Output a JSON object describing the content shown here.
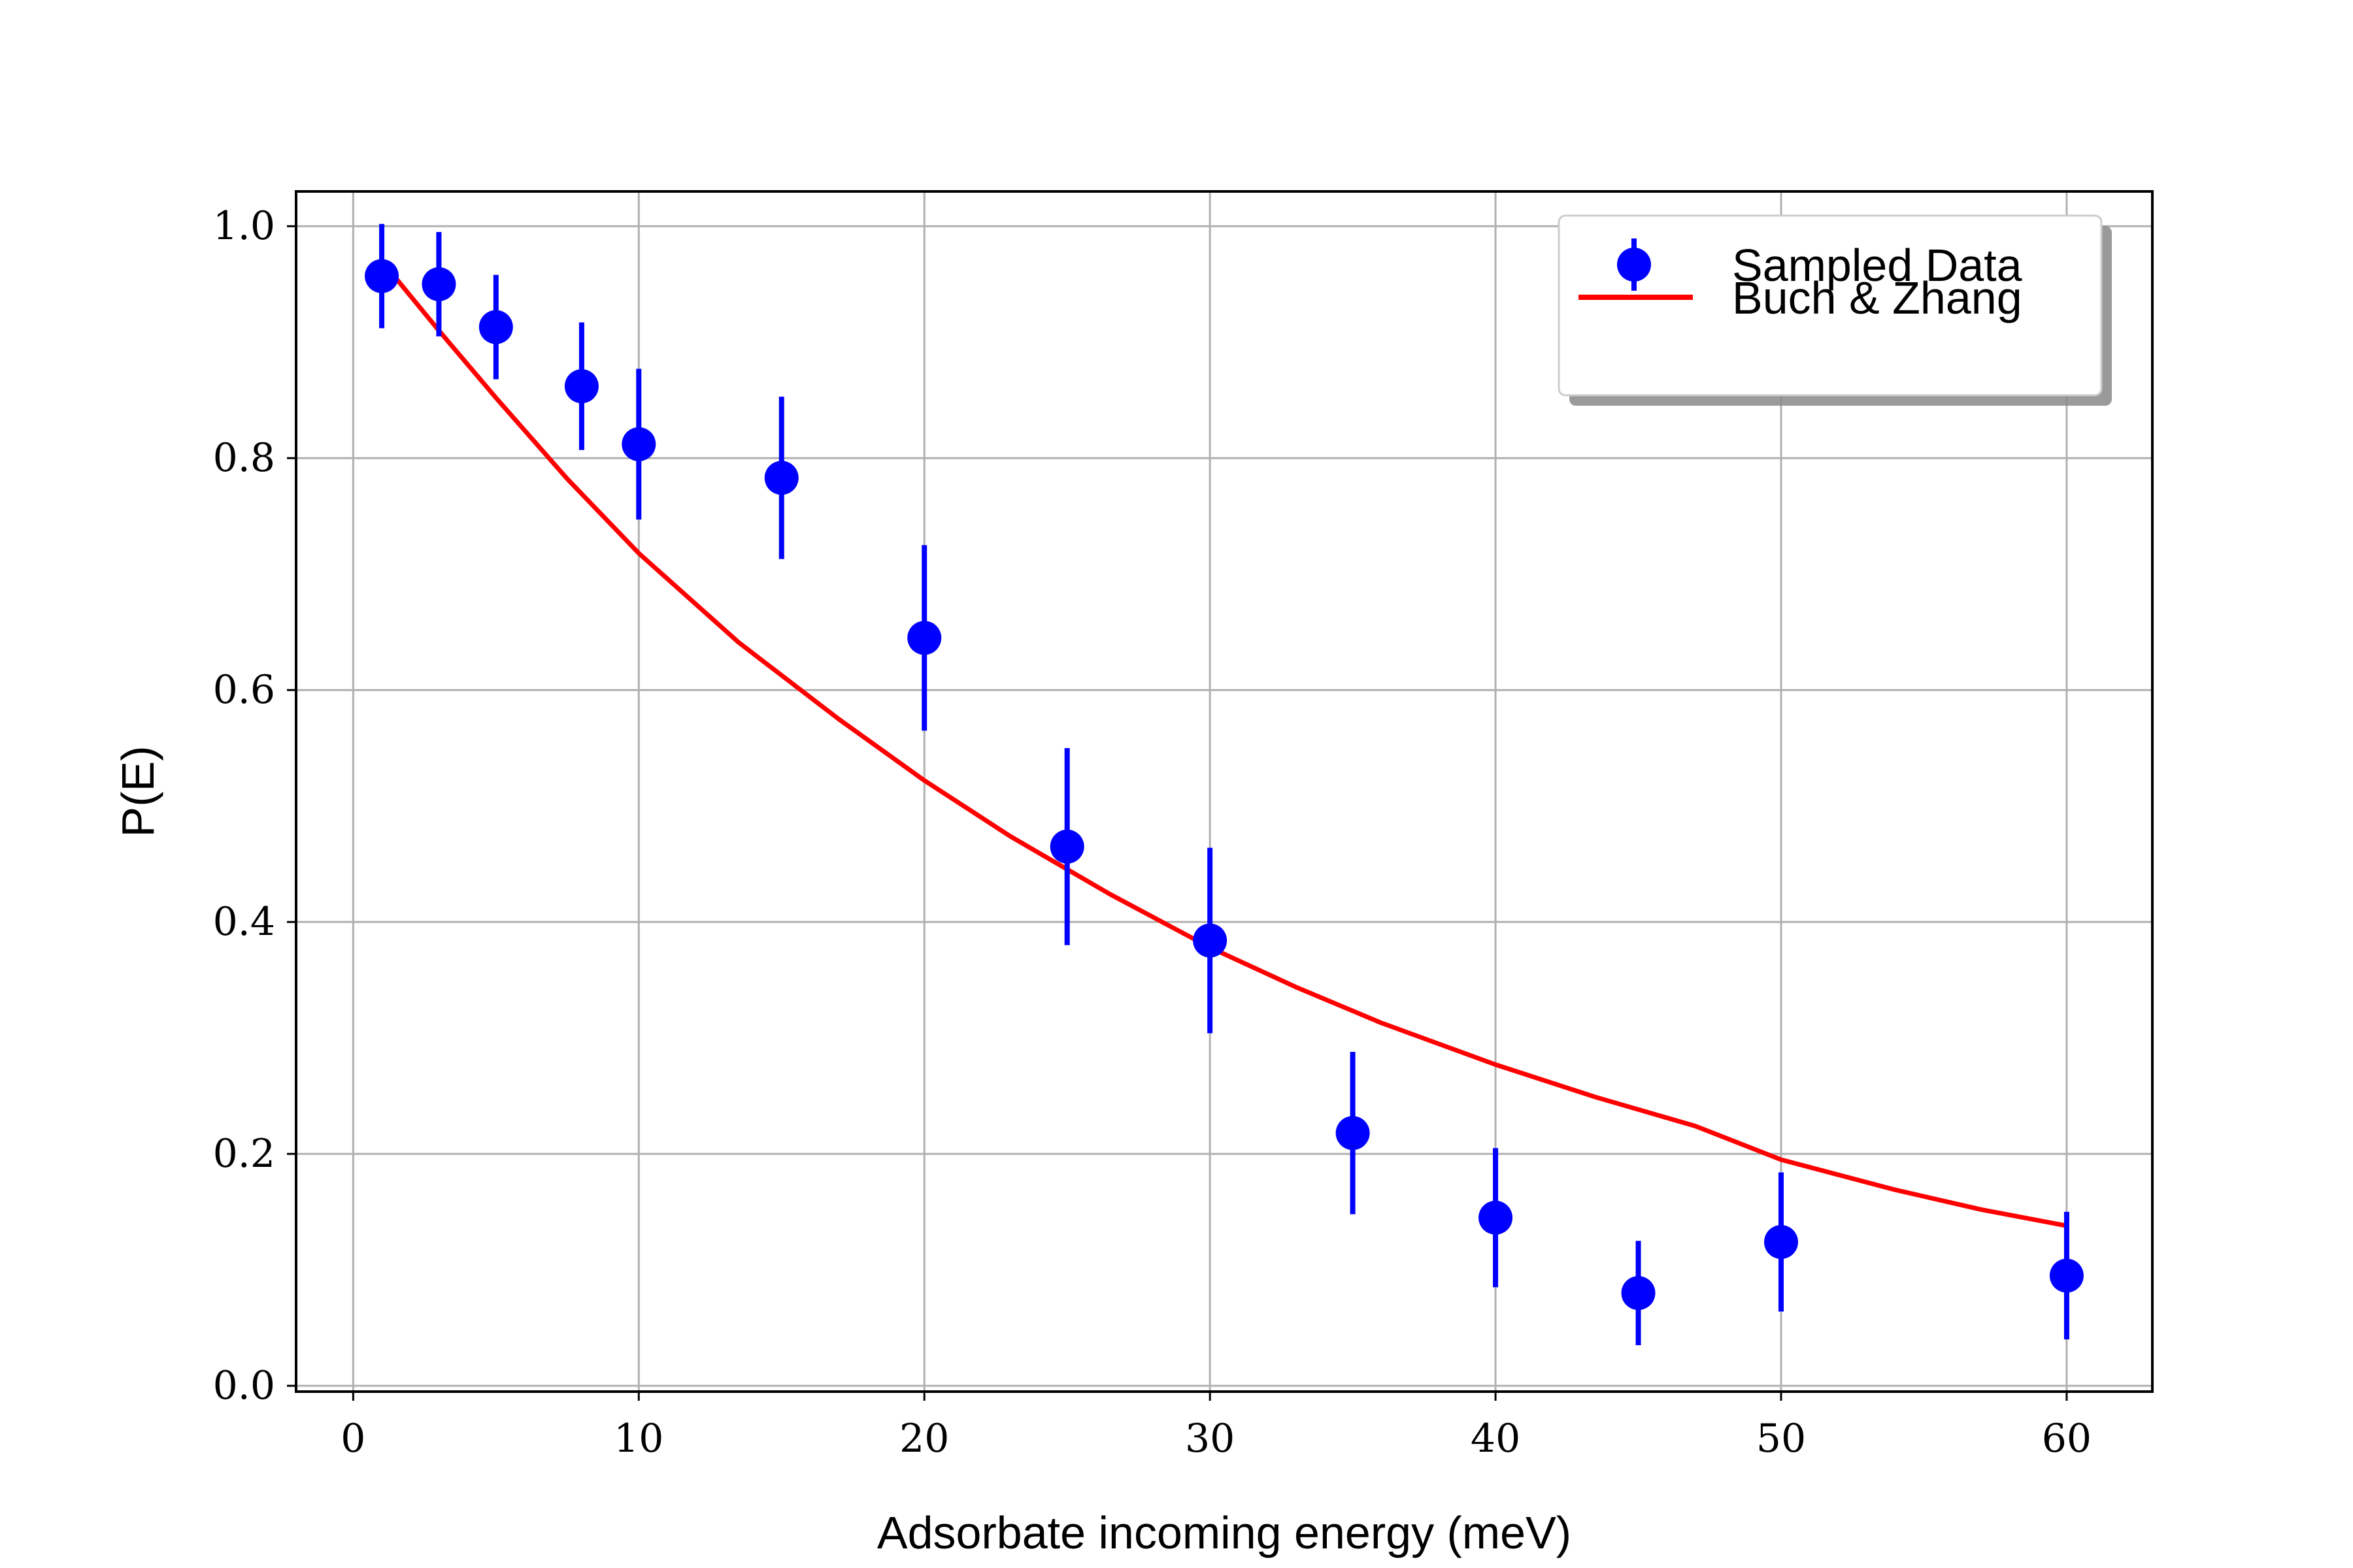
{
  "chart_data": {
    "type": "scatter",
    "title": "",
    "xlabel": "Adsorbate incoming energy (meV)",
    "ylabel": "P(E)",
    "xlim": [
      -2,
      63
    ],
    "ylim": [
      -0.005,
      1.03
    ],
    "xticks": [
      0,
      10,
      20,
      30,
      40,
      50,
      60
    ],
    "xtick_labels": [
      "0",
      "10",
      "20",
      "30",
      "40",
      "50",
      "60"
    ],
    "yticks": [
      0.0,
      0.2,
      0.4,
      0.6,
      0.8,
      1.0
    ],
    "ytick_labels": [
      "0.0",
      "0.2",
      "0.4",
      "0.6",
      "0.8",
      "1.0"
    ],
    "grid": true,
    "legend_position": "top-right",
    "series": [
      {
        "name": "Sampled Data",
        "kind": "errorbar",
        "color": "#0000ff",
        "x": [
          1,
          3,
          5,
          8,
          10,
          15,
          20,
          25,
          30,
          35,
          40,
          45,
          50,
          60
        ],
        "y": [
          0.957,
          0.95,
          0.913,
          0.862,
          0.812,
          0.783,
          0.645,
          0.465,
          0.384,
          0.218,
          0.145,
          0.08,
          0.124,
          0.095
        ],
        "yerr": [
          0.045,
          0.045,
          0.045,
          0.055,
          0.065,
          0.07,
          0.08,
          0.085,
          0.08,
          0.07,
          0.06,
          0.045,
          0.06,
          0.055
        ]
      },
      {
        "name": "Buch & Zhang",
        "kind": "line",
        "color": "#ff0000",
        "x": [
          1.5,
          3,
          5,
          7.5,
          10,
          13.5,
          17,
          20,
          23,
          26.5,
          30,
          33,
          36,
          40,
          43.5,
          47,
          50,
          54,
          57,
          60
        ],
        "y": [
          0.955,
          0.91,
          0.852,
          0.782,
          0.718,
          0.641,
          0.575,
          0.522,
          0.474,
          0.424,
          0.378,
          0.344,
          0.313,
          0.277,
          0.249,
          0.224,
          0.195,
          0.169,
          0.152,
          0.138
        ]
      }
    ]
  }
}
